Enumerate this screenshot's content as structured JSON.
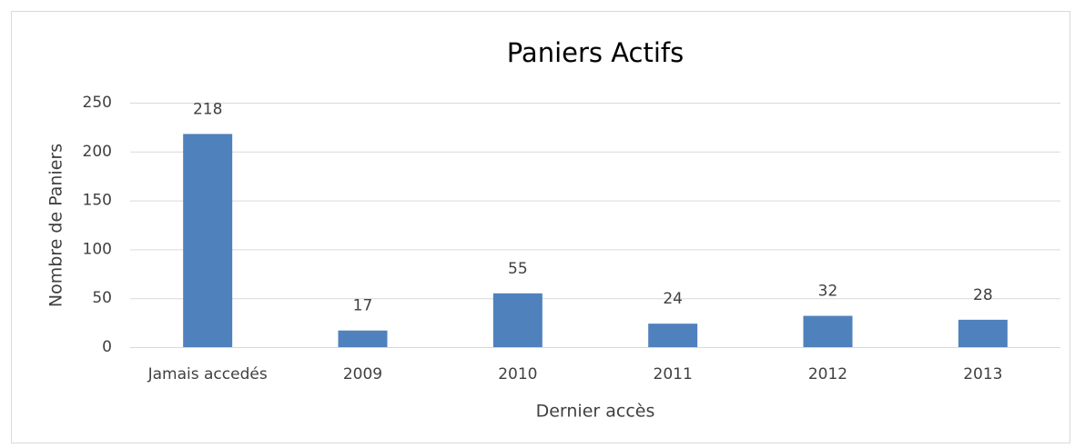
{
  "chart_data": {
    "type": "bar",
    "title": "Paniers Actifs",
    "x_label": "Dernier accès",
    "y_label": "Nombre de Paniers",
    "categories": [
      "Jamais accedés",
      "2009",
      "2010",
      "2011",
      "2012",
      "2013"
    ],
    "values": [
      218,
      17,
      55,
      24,
      32,
      28
    ],
    "color": "#4f81bd",
    "ylim": [
      0,
      250
    ],
    "yticks": [
      0,
      50,
      100,
      150,
      200,
      250
    ],
    "grid": true
  }
}
